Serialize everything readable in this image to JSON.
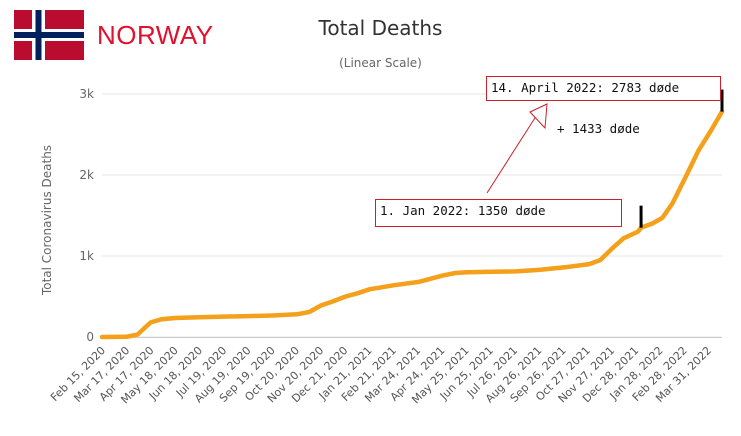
{
  "header": {
    "country": "NORWAY"
  },
  "colors": {
    "line": "#f5a01a",
    "grid": "#e6e6e6",
    "annotation": "#cc1f2a",
    "flag_red": "#ba0c2f",
    "flag_blue": "#00205b"
  },
  "chart_data": {
    "type": "line",
    "title": "Total Deaths",
    "subtitle": "(Linear Scale)",
    "ylabel": "Total Coronavirus Deaths",
    "xlabel": "",
    "ylim": [
      0,
      3000
    ],
    "yticks": [
      0,
      1000,
      2000,
      3000
    ],
    "ytick_labels": [
      "0",
      "1k",
      "2k",
      "3k"
    ],
    "grid": true,
    "legend": "none",
    "categories": [
      "Feb 15, 2020",
      "Mar 17, 2020",
      "Apr 17, 2020",
      "May 18, 2020",
      "Jun 18, 2020",
      "Jul 19, 2020",
      "Aug 19, 2020",
      "Sep 19, 2020",
      "Oct 20, 2020",
      "Nov 20, 2020",
      "Dec 21, 2020",
      "Jan 21, 2021",
      "Feb 21, 2021",
      "Mar 24, 2021",
      "Apr 24, 2021",
      "May 25, 2021",
      "Jun 25, 2021",
      "Jul 26, 2021",
      "Aug 26, 2021",
      "Sep 26, 2021",
      "Oct 27, 2021",
      "Nov 27, 2021",
      "Dec 28, 2021",
      "Jan 28, 2022",
      "Feb 28, 2022",
      "Mar 31, 2022"
    ],
    "series": [
      {
        "x": [
          "2020-02-15",
          "2020-03-17",
          "2020-03-31",
          "2020-04-17",
          "2020-05-01",
          "2020-05-18",
          "2020-06-18",
          "2020-07-19",
          "2020-08-19",
          "2020-09-19",
          "2020-10-20",
          "2020-11-05",
          "2020-11-20",
          "2020-12-05",
          "2020-12-21",
          "2021-01-05",
          "2021-01-21",
          "2021-02-21",
          "2021-03-24",
          "2021-04-24",
          "2021-05-10",
          "2021-05-25",
          "2021-06-25",
          "2021-07-26",
          "2021-08-26",
          "2021-09-26",
          "2021-10-27",
          "2021-11-10",
          "2021-11-27",
          "2021-12-10",
          "2021-12-28",
          "2022-01-01",
          "2022-01-15",
          "2022-01-28",
          "2022-02-10",
          "2022-02-28",
          "2022-03-15",
          "2022-03-31",
          "2022-04-14"
        ],
        "values": [
          0,
          2,
          30,
          180,
          220,
          235,
          245,
          252,
          258,
          265,
          280,
          310,
          390,
          440,
          500,
          540,
          590,
          640,
          680,
          760,
          790,
          800,
          805,
          810,
          830,
          860,
          900,
          950,
          1110,
          1220,
          1300,
          1350,
          1400,
          1470,
          1650,
          2000,
          2300,
          2550,
          2783
        ]
      }
    ],
    "annotations": [
      {
        "text": "1. Jan 2022: 1350 døde",
        "date": "2022-01-01",
        "value": 1350
      },
      {
        "text": "14. April 2022: 2783 døde",
        "date": "2022-04-14",
        "value": 2783
      },
      {
        "text": "+ 1433 døde"
      }
    ]
  }
}
